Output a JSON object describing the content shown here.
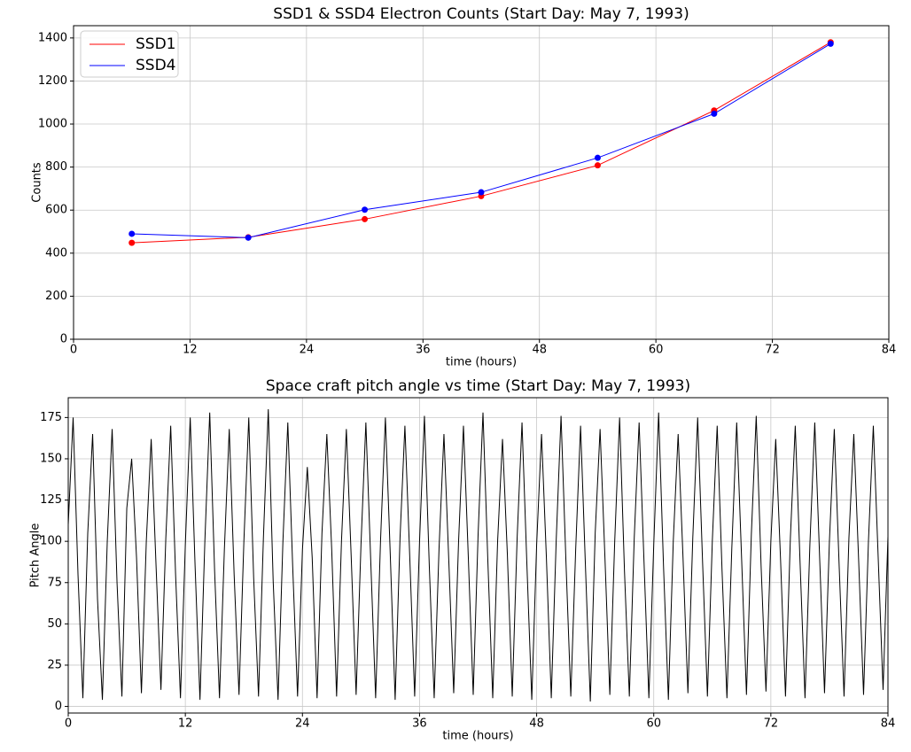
{
  "chart_data": [
    {
      "type": "line",
      "title": "SSD1 & SSD4 Electron Counts (Start Day: May 7, 1993)",
      "x_label": "time (hours)",
      "y_label": "Counts",
      "x": [
        6,
        18,
        30,
        42,
        54,
        66,
        78
      ],
      "series": [
        {
          "name": "SSD1",
          "color": "#ff0000",
          "values": [
            448,
            474,
            558,
            665,
            808,
            1063,
            1380
          ]
        },
        {
          "name": "SSD4",
          "color": "#0000ff",
          "values": [
            490,
            472,
            602,
            683,
            843,
            1048,
            1373
          ]
        }
      ],
      "markers": true,
      "xlim": [
        0,
        84
      ],
      "xticks": [
        0,
        12,
        24,
        36,
        48,
        60,
        72,
        84
      ],
      "ylim": [
        0,
        1457
      ],
      "yticks": [
        0,
        200,
        400,
        600,
        800,
        1000,
        1200,
        1400
      ],
      "grid": true,
      "legend": "upper left"
    },
    {
      "type": "line",
      "title": "Space craft pitch angle vs time (Start Day: May 7, 1993)",
      "x_label": "time (hours)",
      "y_label": "Pitch Angle",
      "x": [
        0,
        0.5,
        1,
        1.5,
        2,
        2.5,
        3,
        3.5,
        4,
        4.5,
        5,
        5.5,
        6,
        6.5,
        7,
        7.5,
        8,
        8.5,
        9,
        9.5,
        10,
        10.5,
        11,
        11.5,
        12,
        12.5,
        13,
        13.5,
        14,
        14.5,
        15,
        15.5,
        16,
        16.5,
        17,
        17.5,
        18,
        18.5,
        19,
        19.5,
        20,
        20.5,
        21,
        21.5,
        22,
        22.5,
        23,
        23.5,
        24,
        24.5,
        25,
        25.5,
        26,
        26.5,
        27,
        27.5,
        28,
        28.5,
        29,
        29.5,
        30,
        30.5,
        31,
        31.5,
        32,
        32.5,
        33,
        33.5,
        34,
        34.5,
        35,
        35.5,
        36,
        36.5,
        37,
        37.5,
        38,
        38.5,
        39,
        39.5,
        40,
        40.5,
        41,
        41.5,
        42,
        42.5,
        43,
        43.5,
        44,
        44.5,
        45,
        45.5,
        46,
        46.5,
        47,
        47.5,
        48,
        48.5,
        49,
        49.5,
        50,
        50.5,
        51,
        51.5,
        52,
        52.5,
        53,
        53.5,
        54,
        54.5,
        55,
        55.5,
        56,
        56.5,
        57,
        57.5,
        58,
        58.5,
        59,
        59.5,
        60,
        60.5,
        61,
        61.5,
        62,
        62.5,
        63,
        63.5,
        64,
        64.5,
        65,
        65.5,
        66,
        66.5,
        67,
        67.5,
        68,
        68.5,
        69,
        69.5,
        70,
        70.5,
        71,
        71.5,
        72,
        72.5,
        73,
        73.5,
        74,
        74.5,
        75,
        75.5,
        76,
        76.5,
        77,
        77.5,
        78,
        78.5,
        79,
        79.5,
        80,
        80.5,
        81,
        81.5,
        82,
        82.5,
        83,
        83.5,
        84
      ],
      "series": [
        {
          "name": "Pitch Angle",
          "color": "#000000",
          "values": [
            110,
            175,
            80,
            5,
            105,
            165,
            65,
            4,
            100,
            168,
            75,
            6,
            120,
            150,
            90,
            8,
            100,
            162,
            85,
            10,
            102,
            170,
            80,
            5,
            98,
            175,
            85,
            4,
            100,
            178,
            82,
            5,
            95,
            168,
            80,
            7,
            100,
            175,
            78,
            6,
            102,
            180,
            76,
            4,
            100,
            172,
            85,
            6,
            95,
            145,
            90,
            5,
            105,
            165,
            95,
            6,
            100,
            168,
            90,
            7,
            98,
            172,
            88,
            5,
            100,
            175,
            92,
            4,
            102,
            170,
            90,
            6,
            100,
            176,
            85,
            5,
            96,
            165,
            88,
            8,
            100,
            170,
            90,
            7,
            104,
            178,
            88,
            5,
            100,
            162,
            92,
            6,
            102,
            172,
            86,
            4,
            98,
            165,
            90,
            5,
            100,
            176,
            88,
            6,
            95,
            170,
            85,
            3,
            105,
            168,
            90,
            7,
            100,
            175,
            82,
            6,
            102,
            172,
            88,
            5,
            98,
            178,
            85,
            4,
            100,
            165,
            90,
            8,
            102,
            175,
            88,
            6,
            100,
            170,
            82,
            5,
            96,
            172,
            90,
            7,
            104,
            176,
            85,
            9,
            100,
            162,
            88,
            6,
            102,
            170,
            86,
            5,
            98,
            172,
            90,
            8,
            100,
            168,
            85,
            6,
            102,
            165,
            88,
            7,
            100,
            170,
            90,
            10,
            103
          ]
        }
      ],
      "markers": false,
      "xlim": [
        0,
        84
      ],
      "xticks": [
        0,
        12,
        24,
        36,
        48,
        60,
        72,
        84
      ],
      "ylim": [
        -4,
        187
      ],
      "yticks": [
        0,
        25,
        50,
        75,
        100,
        125,
        150,
        175
      ],
      "grid": true
    }
  ]
}
